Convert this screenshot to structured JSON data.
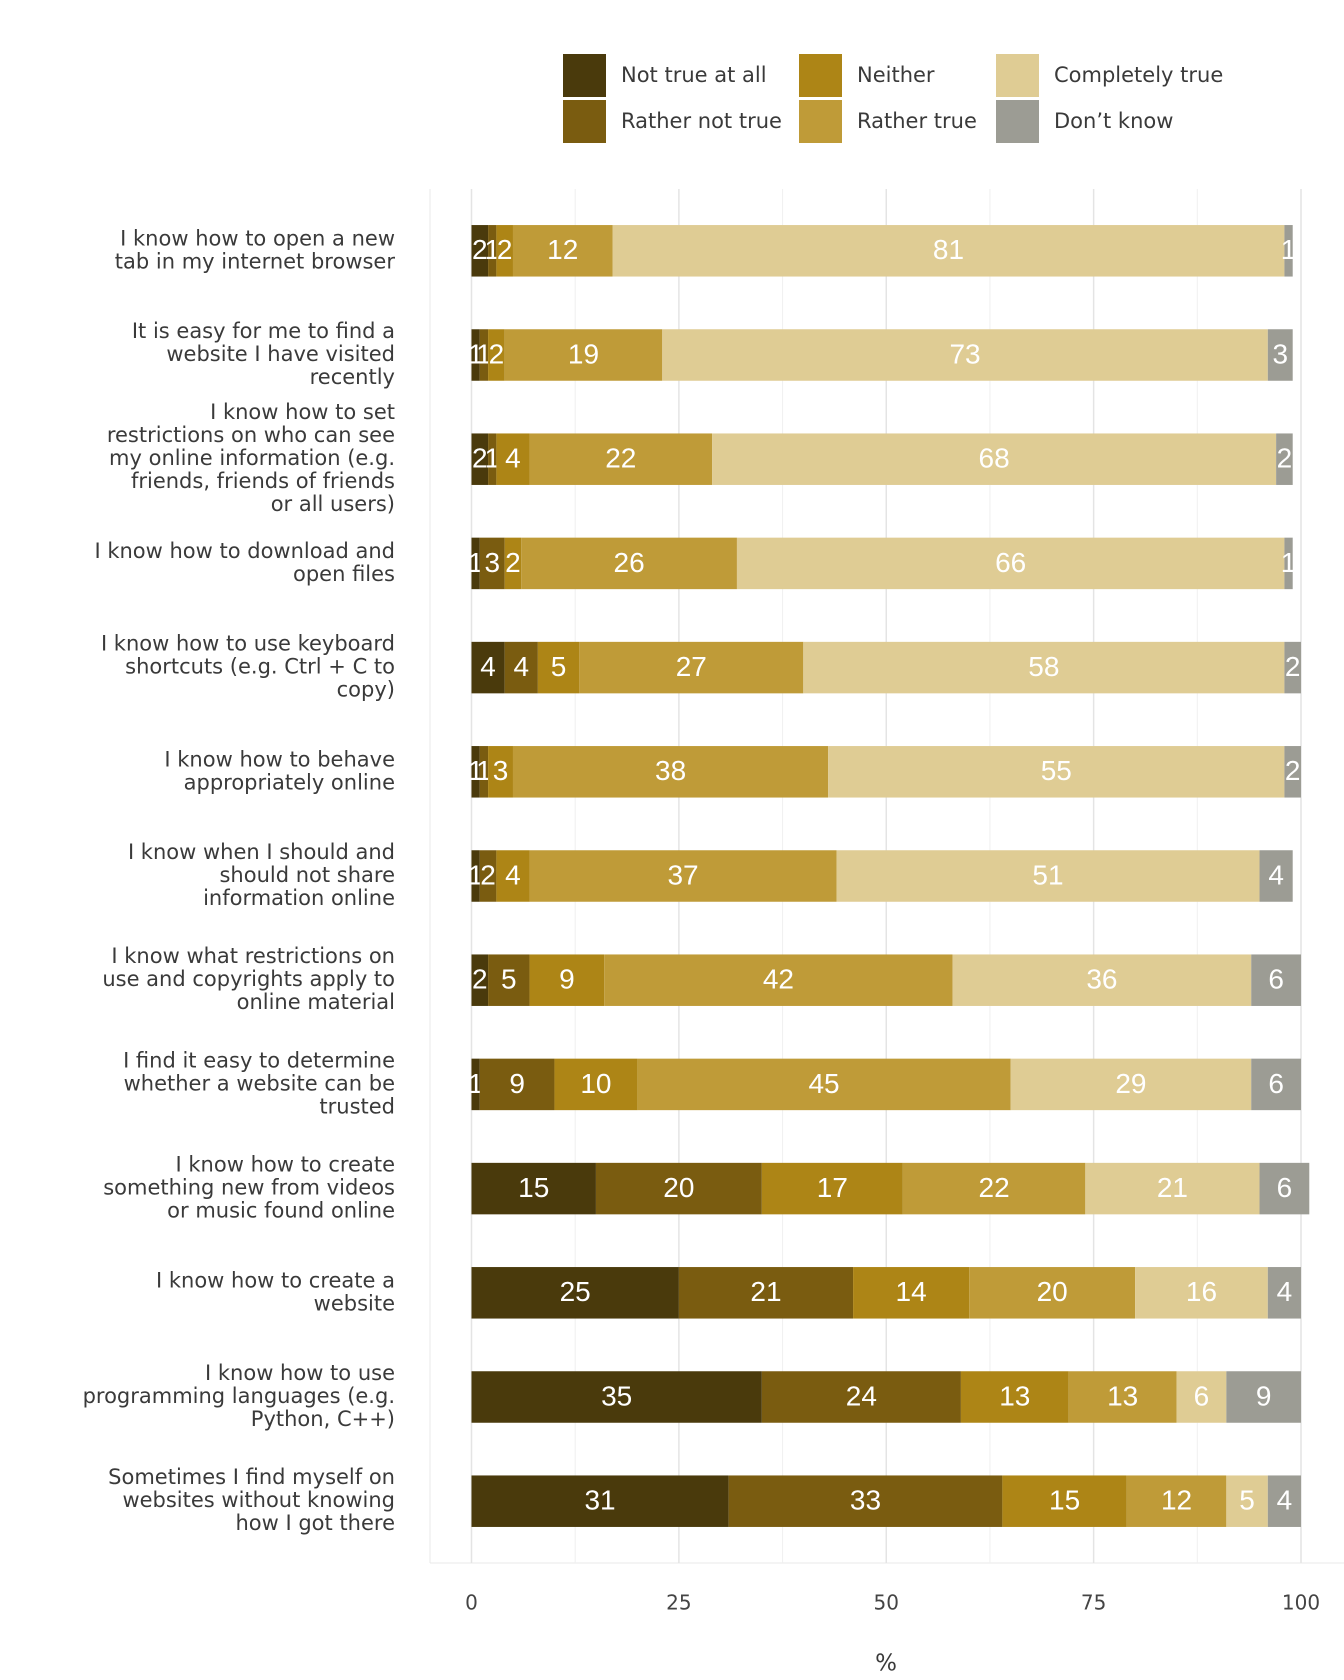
{
  "chart_data": {
    "type": "stacked_barh",
    "xlabel": "%",
    "categories": [
      "I know how to open a new tab in my internet browser",
      "It is easy for me to find a website I have visited recently",
      "I know how to set restrictions on who can see my online information (e.g. friends, friends of friends or all users)",
      "I know how to download and open files",
      "I know how to use keyboard shortcuts (e.g. Ctrl + C to copy)",
      "I know how to behave appropriately online",
      "I know when I should and should not share information online",
      "I know what restrictions on use and copyrights apply to online material",
      "I find it easy to determine whether a website can be trusted",
      "I know how to create something new from videos or music found online",
      "I know how to create a website",
      "I know how to use programming languages (e.g. Python, C++)",
      "Sometimes I find myself on websites without knowing how I got there"
    ],
    "series": [
      {
        "name": "Not true at all",
        "color": "#4a3a0c",
        "values": [
          2,
          1,
          2,
          1,
          4,
          1,
          1,
          2,
          1,
          15,
          25,
          35,
          31
        ]
      },
      {
        "name": "Rather not true",
        "color": "#7a5c10",
        "values": [
          1,
          1,
          1,
          3,
          4,
          1,
          2,
          5,
          9,
          20,
          21,
          24,
          33
        ]
      },
      {
        "name": "Neither",
        "color": "#ad8516",
        "values": [
          2,
          2,
          4,
          2,
          5,
          3,
          4,
          9,
          10,
          17,
          14,
          13,
          15
        ]
      },
      {
        "name": "Rather true",
        "color": "#bf9b38",
        "values": [
          12,
          19,
          22,
          26,
          27,
          38,
          37,
          42,
          45,
          22,
          20,
          13,
          12
        ]
      },
      {
        "name": "Completely true",
        "color": "#dfcc94",
        "values": [
          81,
          73,
          68,
          66,
          58,
          55,
          51,
          36,
          29,
          21,
          16,
          6,
          5
        ]
      },
      {
        "name": "Don’t know",
        "color": "#9c9c94",
        "values": [
          1,
          3,
          2,
          1,
          2,
          2,
          4,
          6,
          6,
          6,
          4,
          9,
          4
        ]
      }
    ],
    "xlim": [
      0,
      100
    ],
    "xticks": [
      0,
      25,
      50,
      75,
      100
    ],
    "grid": true
  }
}
